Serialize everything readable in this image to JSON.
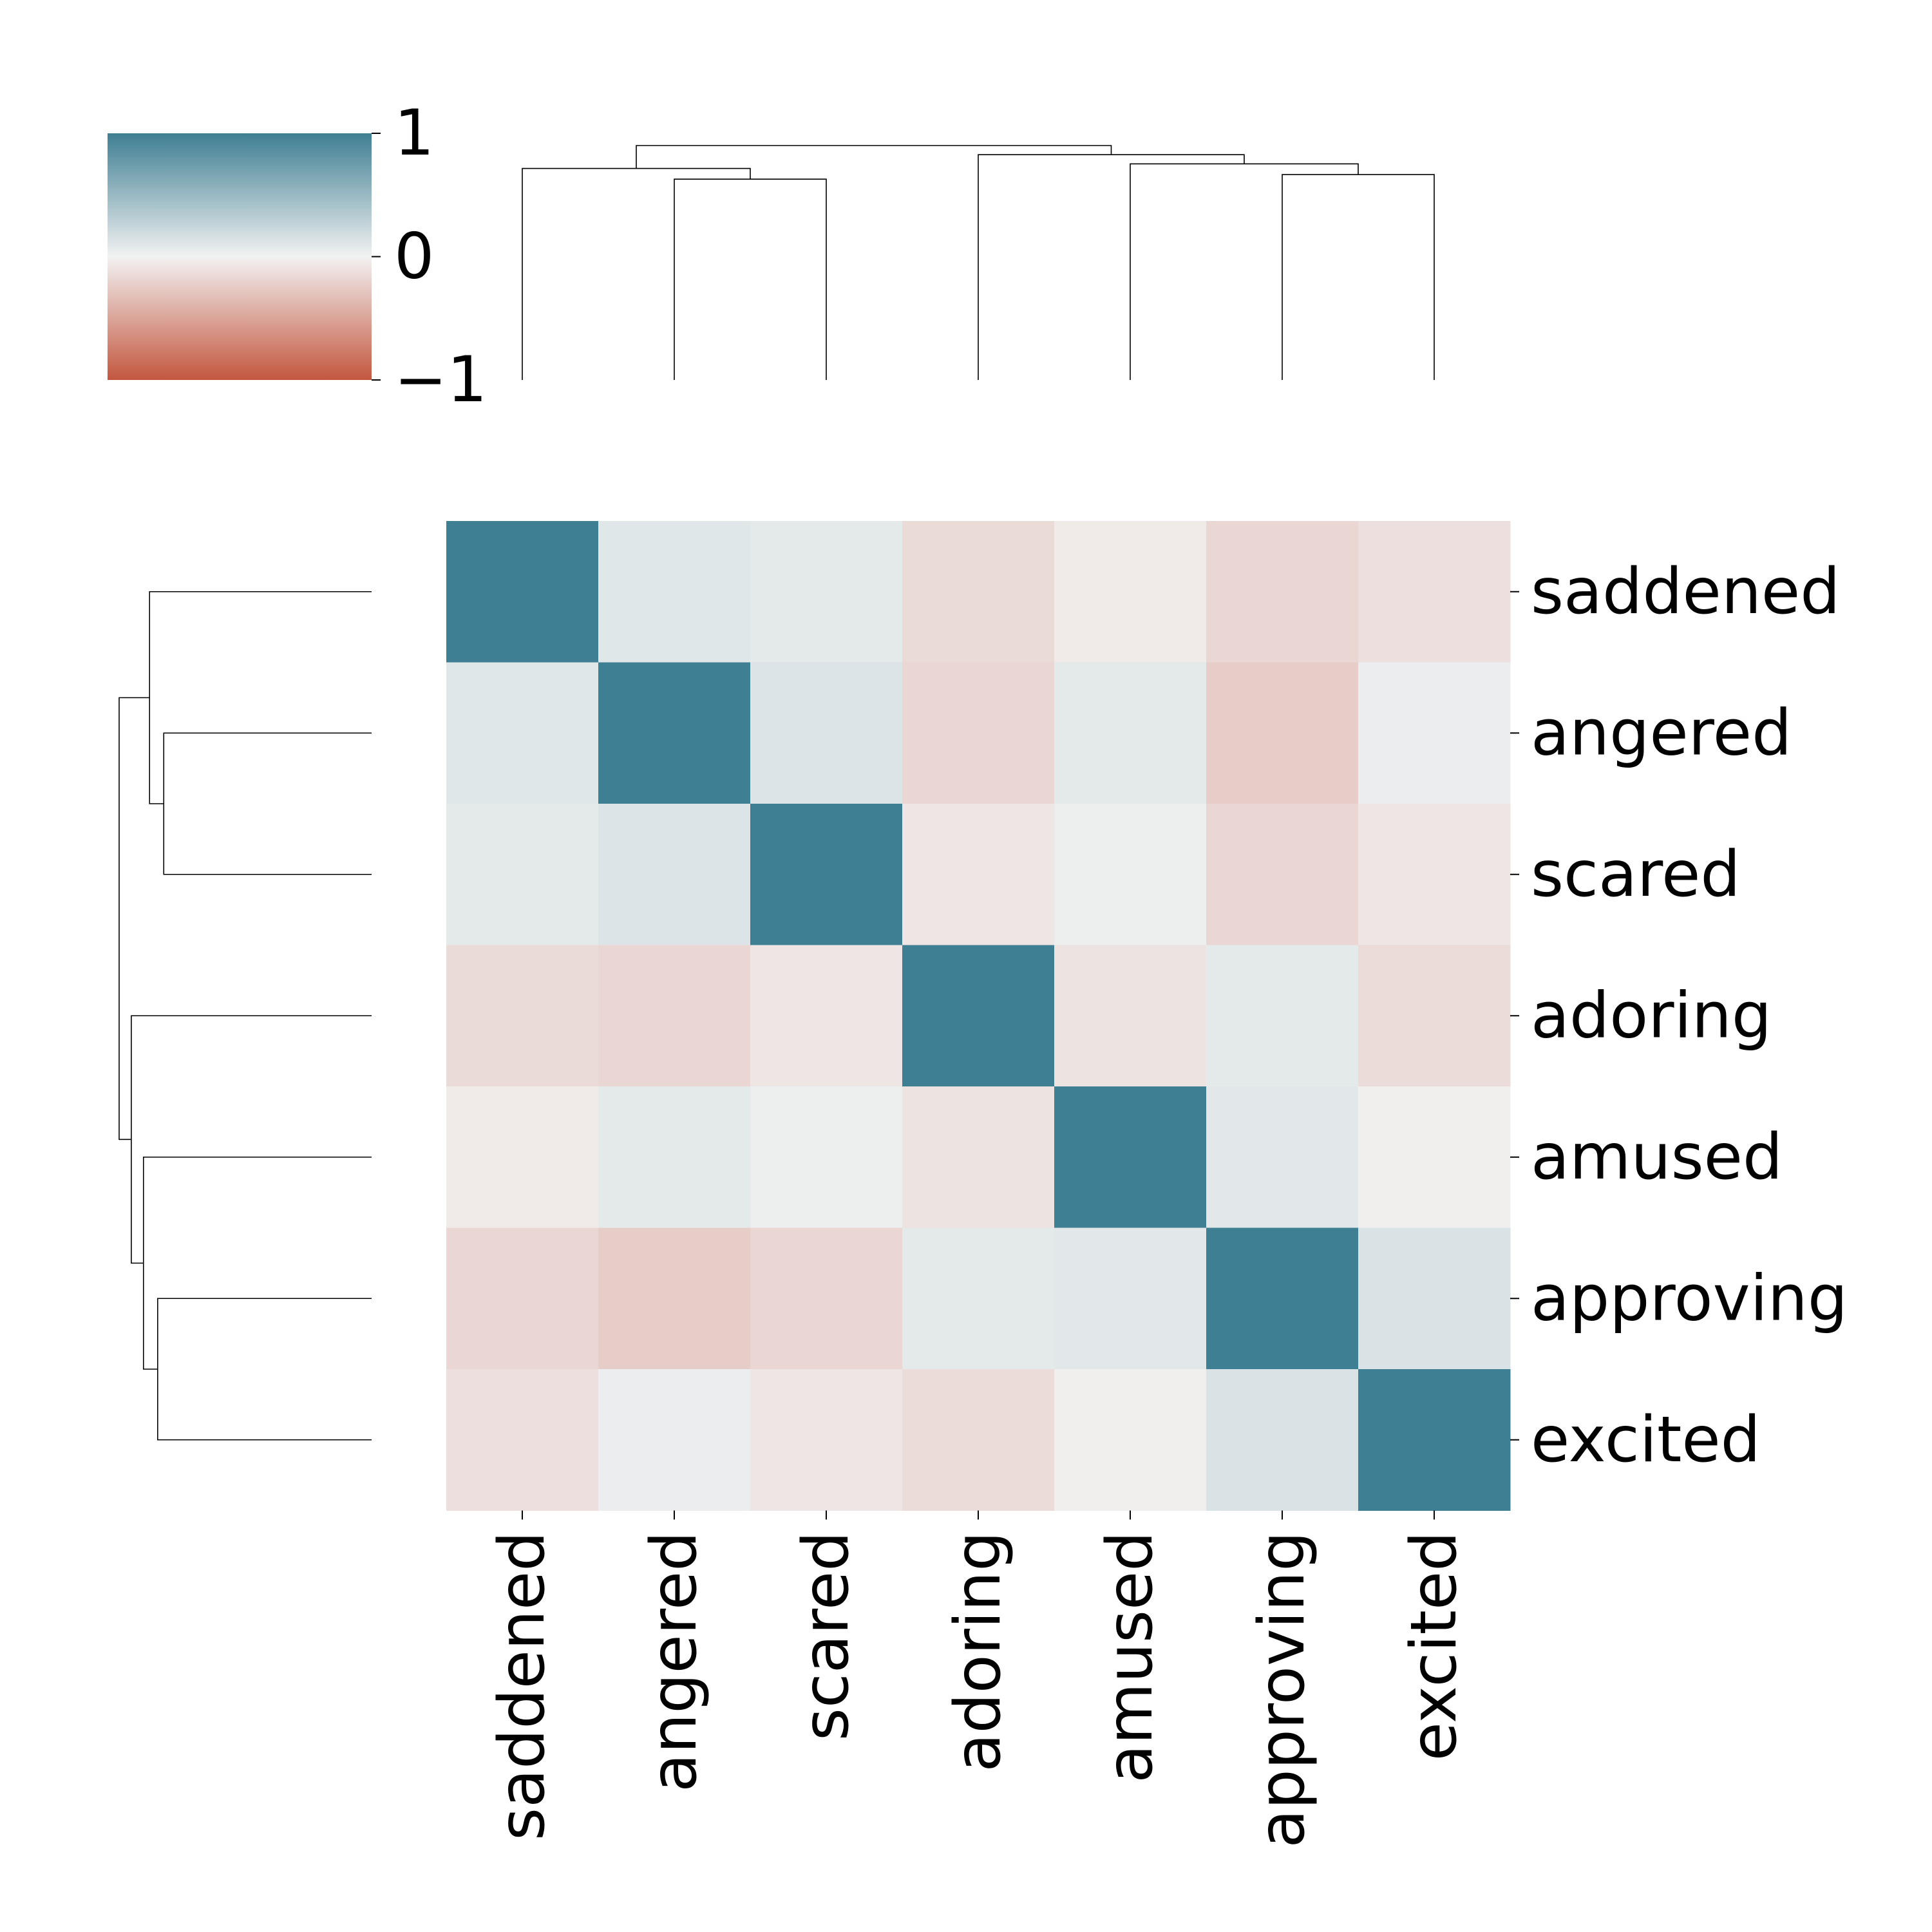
{
  "chart_data": {
    "type": "heatmap",
    "title": "",
    "xlabel": "",
    "ylabel": "",
    "row_labels": [
      "saddened",
      "angered",
      "scared",
      "adoring",
      "amused",
      "approving",
      "excited"
    ],
    "col_labels": [
      "saddened",
      "angered",
      "scared",
      "adoring",
      "amused",
      "approving",
      "excited"
    ],
    "values": [
      [
        1.0,
        0.1,
        0.08,
        -0.15,
        -0.05,
        -0.18,
        -0.12
      ],
      [
        0.1,
        1.0,
        0.12,
        -0.18,
        0.08,
        -0.24,
        0.04
      ],
      [
        0.08,
        0.12,
        1.0,
        -0.08,
        0.03,
        -0.18,
        -0.08
      ],
      [
        -0.15,
        -0.18,
        -0.08,
        1.0,
        -0.1,
        0.08,
        -0.14
      ],
      [
        -0.05,
        0.08,
        0.03,
        -0.1,
        1.0,
        0.09,
        -0.02
      ],
      [
        -0.18,
        -0.24,
        -0.18,
        0.08,
        0.09,
        1.0,
        0.14
      ],
      [
        -0.12,
        0.04,
        -0.08,
        -0.14,
        -0.02,
        0.14,
        1.0
      ]
    ],
    "colorbar": {
      "range": [
        -1,
        1
      ],
      "ticks": [
        1,
        0,
        -1
      ],
      "tick_labels": [
        "1",
        "0",
        "−1"
      ],
      "color_negative": "#c3573f",
      "color_zero": "#f2f2f2",
      "color_positive": "#3f7f93"
    },
    "dendrogram": {
      "leaf_order": [
        "saddened",
        "angered",
        "scared",
        "adoring",
        "amused",
        "approving",
        "excited"
      ],
      "merges": [
        {
          "left": "angered",
          "right": "scared",
          "height": 0.6
        },
        {
          "left": "approving",
          "right": "excited",
          "height": 0.63
        },
        {
          "left": "amused",
          "right": "approving+excited",
          "height": 0.7
        },
        {
          "left": "saddened",
          "right": "angered+scared",
          "height": 0.67
        },
        {
          "left": "adoring",
          "right": "amused+approving+excited",
          "height": 0.76
        },
        {
          "left": "saddened+angered+scared",
          "right": "adoring+amused+approving+excited",
          "height": 0.82
        }
      ]
    },
    "line_color": "#000000"
  }
}
